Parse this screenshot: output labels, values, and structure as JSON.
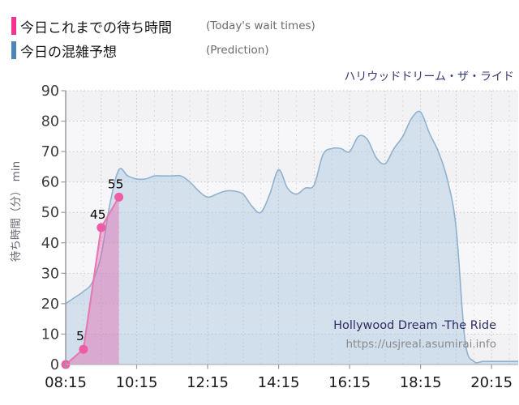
{
  "legend": {
    "items": [
      {
        "name": "today-wait-times",
        "label_jp": "今日これまでの待ち時間",
        "label_en": "(Today's wait times)",
        "color": "#f53192"
      },
      {
        "name": "prediction",
        "label_jp": "今日の混雑予想",
        "label_en": "(Prediction)",
        "color": "#4e84b8"
      }
    ]
  },
  "chart_title": "ハリウッドドリーム・ザ・ライド",
  "watermark": {
    "title": "Hollywood Dream -The Ride",
    "url": "https://usjreal.asumirai.info"
  },
  "colors": {
    "plot_band_a": "#f2f2f5",
    "plot_band_b": "#f7f7f9",
    "grid": "#c6c6cb",
    "grid_minor": "#d4d4d8",
    "axis": "#9a9aa0",
    "x_axis_line": "#b4b4ba",
    "tick_label_x": "#1a1a1a",
    "tick_label_y": "#3c3c3c",
    "data_label": "#000000",
    "today_line": "#e57bb4",
    "today_dot": "#ee5ca6",
    "today_fill": "rgba(230,90,170,0.40)",
    "prediction_stroke": "#8fb2cf",
    "prediction_fill": "rgba(164,196,221,0.42)"
  },
  "chart_data": {
    "type": "area",
    "title": "ハリウッドドリーム・ザ・ライド",
    "ylabel": "待ち時間（分） min",
    "ylim": [
      0,
      90
    ],
    "y_tick_step": 10,
    "y_tick_labels": [
      "0",
      "10",
      "20",
      "30",
      "40",
      "50",
      "60",
      "70",
      "80",
      "90"
    ],
    "x_tick_labels": [
      "08:15",
      "10:15",
      "12:15",
      "14:15",
      "16:15",
      "18:15",
      "20:15"
    ],
    "x_range": [
      "08:15",
      "21:00"
    ],
    "grid": true,
    "legend_position": "top-left",
    "series": [
      {
        "name": "今日これまでの待ち時間 (Today's wait times)",
        "type": "line",
        "x": [
          "08:15",
          "08:45",
          "09:15",
          "09:45"
        ],
        "values": [
          0,
          5,
          45,
          55
        ],
        "point_labels": [
          "",
          "5",
          "45",
          "55"
        ]
      },
      {
        "name": "今日の混雑予想 (Prediction)",
        "type": "area",
        "x": [
          "08:15",
          "08:30",
          "08:45",
          "09:00",
          "09:15",
          "09:30",
          "09:45",
          "10:00",
          "10:15",
          "10:30",
          "10:45",
          "11:00",
          "11:15",
          "11:30",
          "11:45",
          "12:00",
          "12:15",
          "12:30",
          "12:45",
          "13:00",
          "13:15",
          "13:30",
          "13:45",
          "14:00",
          "14:15",
          "14:30",
          "14:45",
          "15:00",
          "15:15",
          "15:30",
          "15:45",
          "16:00",
          "16:15",
          "16:30",
          "16:45",
          "17:00",
          "17:15",
          "17:30",
          "17:45",
          "18:00",
          "18:15",
          "18:30",
          "18:45",
          "19:00",
          "19:15",
          "19:30",
          "19:45",
          "20:00",
          "20:15",
          "20:30",
          "20:45",
          "21:00"
        ],
        "values": [
          20,
          22,
          24,
          27,
          36,
          53,
          64,
          62,
          61,
          61,
          62,
          62,
          62,
          62,
          60,
          57,
          55,
          56,
          57,
          57,
          56,
          52,
          50,
          56,
          64,
          58,
          56,
          58,
          59,
          69,
          71,
          71,
          70,
          75,
          74,
          68,
          66,
          71,
          75,
          81,
          83,
          76,
          70,
          61,
          45,
          8,
          1,
          1,
          1,
          1,
          1,
          1
        ]
      }
    ]
  }
}
